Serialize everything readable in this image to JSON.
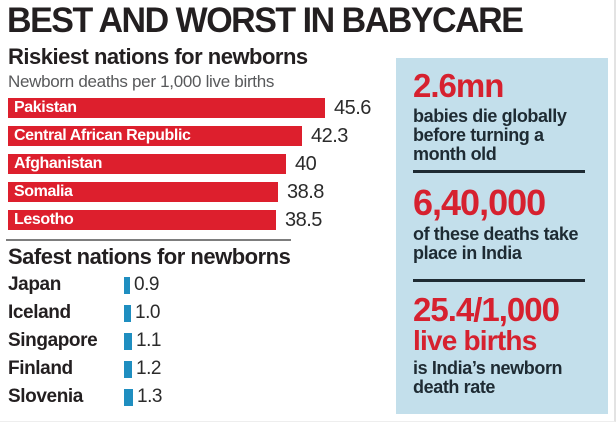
{
  "header": {
    "title": "BEST AND WORST IN BABYCARE"
  },
  "riskiest": {
    "heading": "Riskiest nations for newborns",
    "units": "Newborn deaths per 1,000 live births"
  },
  "safest": {
    "heading": "Safest nations for newborns"
  },
  "chart_data": [
    {
      "type": "bar",
      "orientation": "horizontal",
      "title": "Riskiest nations for newborns",
      "xlabel": "Newborn deaths per 1,000 live births",
      "categories": [
        "Pakistan",
        "Central African Republic",
        "Afghanistan",
        "Somalia",
        "Lesotho"
      ],
      "values": [
        45.6,
        42.3,
        40,
        38.8,
        38.5
      ],
      "value_labels": [
        "45.6",
        "42.3",
        "40",
        "38.8",
        "38.5"
      ],
      "bar_color": "#dd1f2d",
      "label_position": "inside-bar",
      "grid": false
    },
    {
      "type": "bar",
      "orientation": "horizontal",
      "title": "Safest nations for newborns",
      "xlabel": "Newborn deaths per 1,000 live births",
      "categories": [
        "Japan",
        "Iceland",
        "Singapore",
        "Finland",
        "Slovenia"
      ],
      "values": [
        0.9,
        1.0,
        1.1,
        1.2,
        1.3
      ],
      "value_labels": [
        "0.9",
        "1.0",
        "1.1",
        "1.2",
        "1.3"
      ],
      "bar_color": "#1f8ec0",
      "label_position": "left-of-bar",
      "grid": false
    }
  ],
  "sidebar": {
    "stats": [
      {
        "figure": "2.6mn",
        "figure2": "",
        "desc": "babies die globally before turning a month old"
      },
      {
        "figure": "6,40,000",
        "figure2": "",
        "desc": "of these deaths take place in India"
      },
      {
        "figure": "25.4/1,000",
        "figure2": "live births",
        "desc": "is India’s newborn death rate"
      }
    ]
  },
  "colors": {
    "title_text": "#231f20",
    "subtitle_gray": "#58595b",
    "risk_bar_red": "#dd1f2d",
    "safe_bar_blue": "#1f8ec0",
    "panel_background": "#c3dfeb",
    "panel_figure_red": "#d6212f",
    "panel_text_dark": "#1e2b33"
  }
}
